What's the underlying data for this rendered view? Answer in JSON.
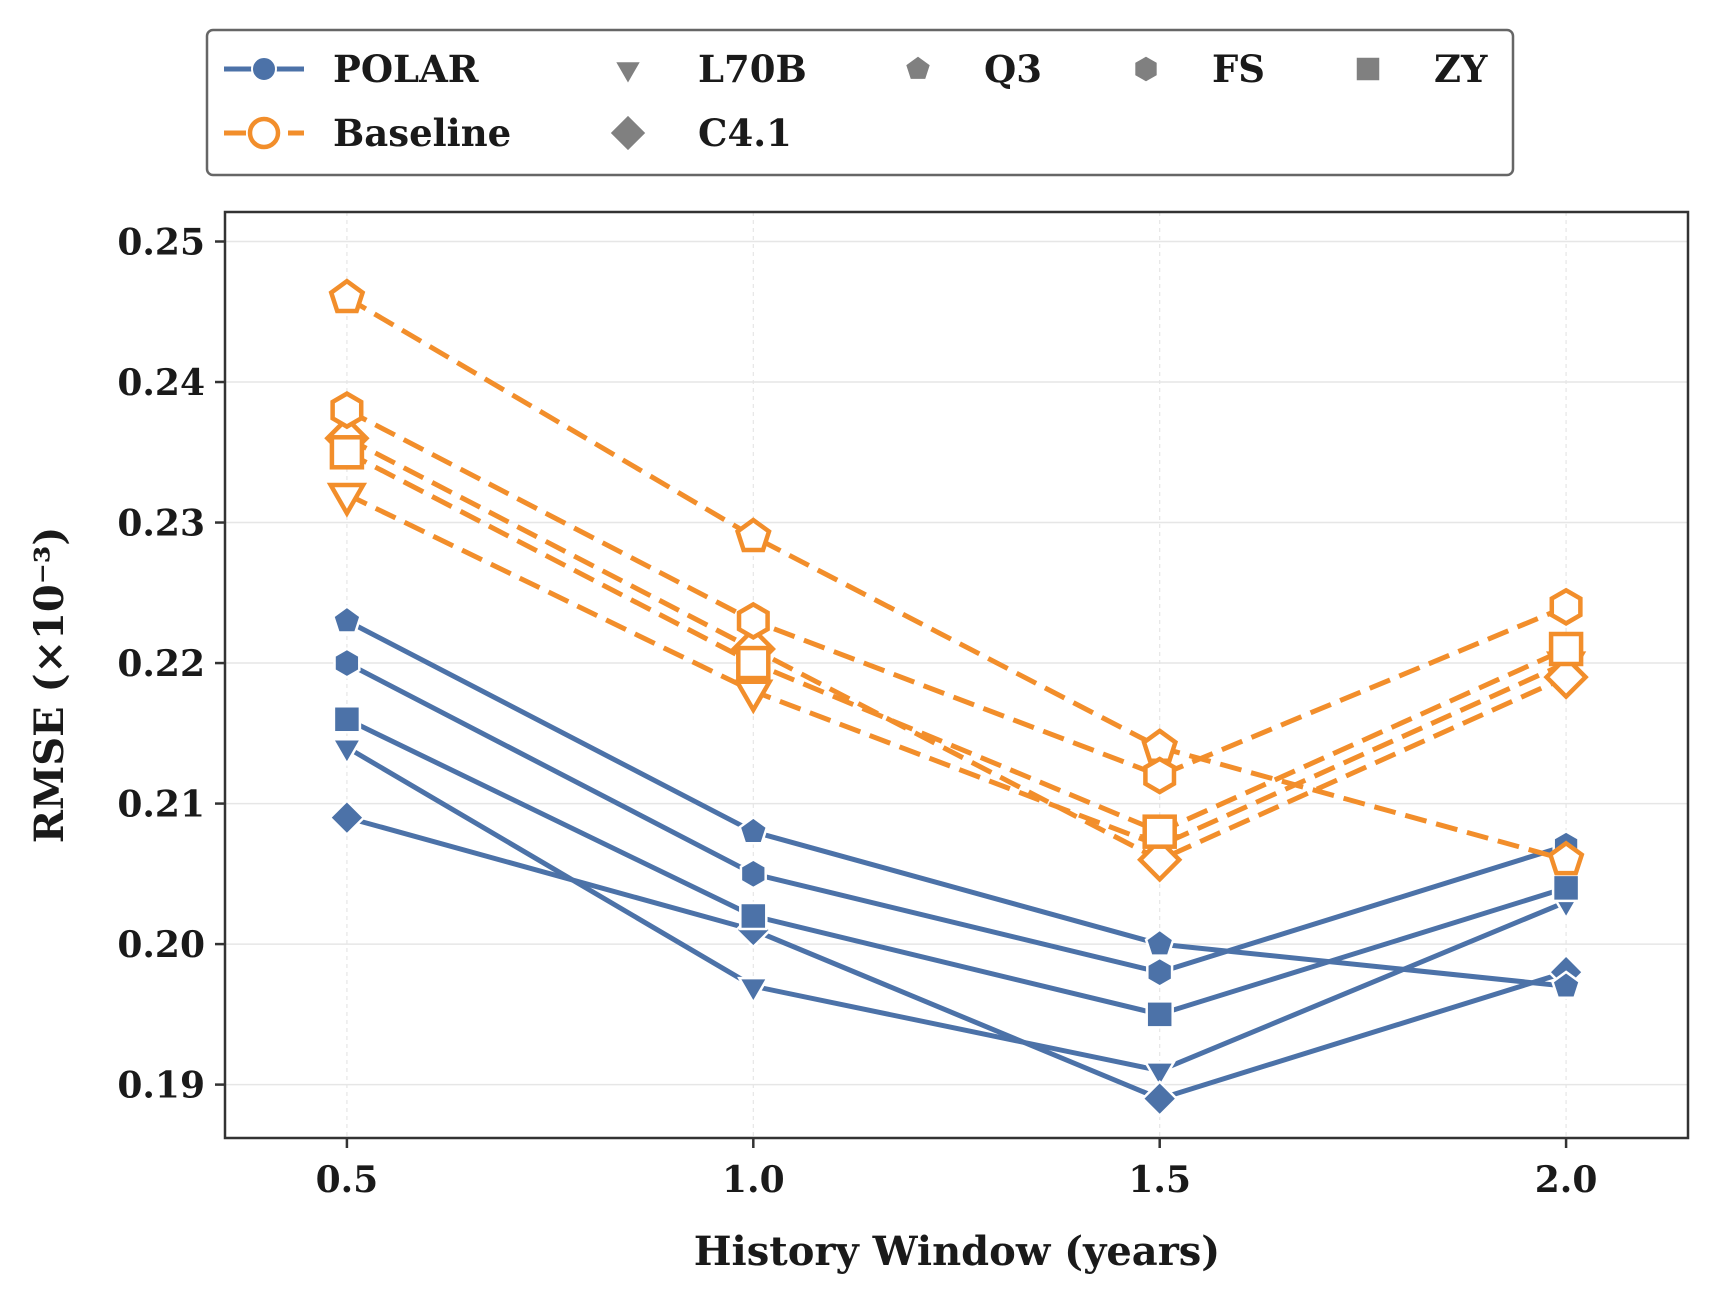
{
  "chart_data": {
    "type": "line",
    "title": "",
    "xlabel": "History Window (years)",
    "ylabel": "RMSE (×10⁻³)",
    "x": [
      0.5,
      1.0,
      1.5,
      2.0
    ],
    "x_tick_labels": [
      "0.5",
      "1.0",
      "1.5",
      "2.0"
    ],
    "xlim": [
      0.35,
      2.15
    ],
    "ylim": [
      0.1862,
      0.2521
    ],
    "y_ticks": [
      0.19,
      0.2,
      0.21,
      0.22,
      0.23,
      0.24,
      0.25
    ],
    "y_tick_labels": [
      "0.19",
      "0.20",
      "0.21",
      "0.22",
      "0.23",
      "0.24",
      "0.25"
    ],
    "grid": true,
    "legend_position": "top-center",
    "methods": [
      {
        "name": "POLAR",
        "color": "#4c72a8",
        "line_style": "solid",
        "marker_fill": "filled"
      },
      {
        "name": "Baseline",
        "color": "#f28e2b",
        "line_style": "dashed",
        "marker_fill": "hollow"
      }
    ],
    "datasets": [
      {
        "name": "L70B",
        "marker": "triangle-down"
      },
      {
        "name": "C4.1",
        "marker": "diamond"
      },
      {
        "name": "Q3",
        "marker": "pentagon"
      },
      {
        "name": "FS",
        "marker": "hexagon"
      },
      {
        "name": "ZY",
        "marker": "square"
      }
    ],
    "series": [
      {
        "method": "POLAR",
        "dataset": "L70B",
        "values": [
          0.214,
          0.197,
          0.191,
          0.203
        ]
      },
      {
        "method": "POLAR",
        "dataset": "C4.1",
        "values": [
          0.209,
          0.201,
          0.189,
          0.198
        ]
      },
      {
        "method": "POLAR",
        "dataset": "Q3",
        "values": [
          0.223,
          0.208,
          0.2,
          0.197
        ]
      },
      {
        "method": "POLAR",
        "dataset": "FS",
        "values": [
          0.22,
          0.205,
          0.198,
          0.207
        ]
      },
      {
        "method": "POLAR",
        "dataset": "ZY",
        "values": [
          0.216,
          0.202,
          0.195,
          0.204
        ]
      },
      {
        "method": "Baseline",
        "dataset": "L70B",
        "values": [
          0.232,
          0.218,
          0.207,
          0.22
        ]
      },
      {
        "method": "Baseline",
        "dataset": "C4.1",
        "values": [
          0.236,
          0.221,
          0.206,
          0.219
        ]
      },
      {
        "method": "Baseline",
        "dataset": "Q3",
        "values": [
          0.246,
          0.229,
          0.214,
          0.206
        ]
      },
      {
        "method": "Baseline",
        "dataset": "FS",
        "values": [
          0.238,
          0.223,
          0.212,
          0.224
        ]
      },
      {
        "method": "Baseline",
        "dataset": "ZY",
        "values": [
          0.235,
          0.22,
          0.208,
          0.221
        ]
      }
    ],
    "legend_marker_color": "#808080",
    "axis_color": "#333333",
    "grid_color": "#e6e6e6"
  }
}
